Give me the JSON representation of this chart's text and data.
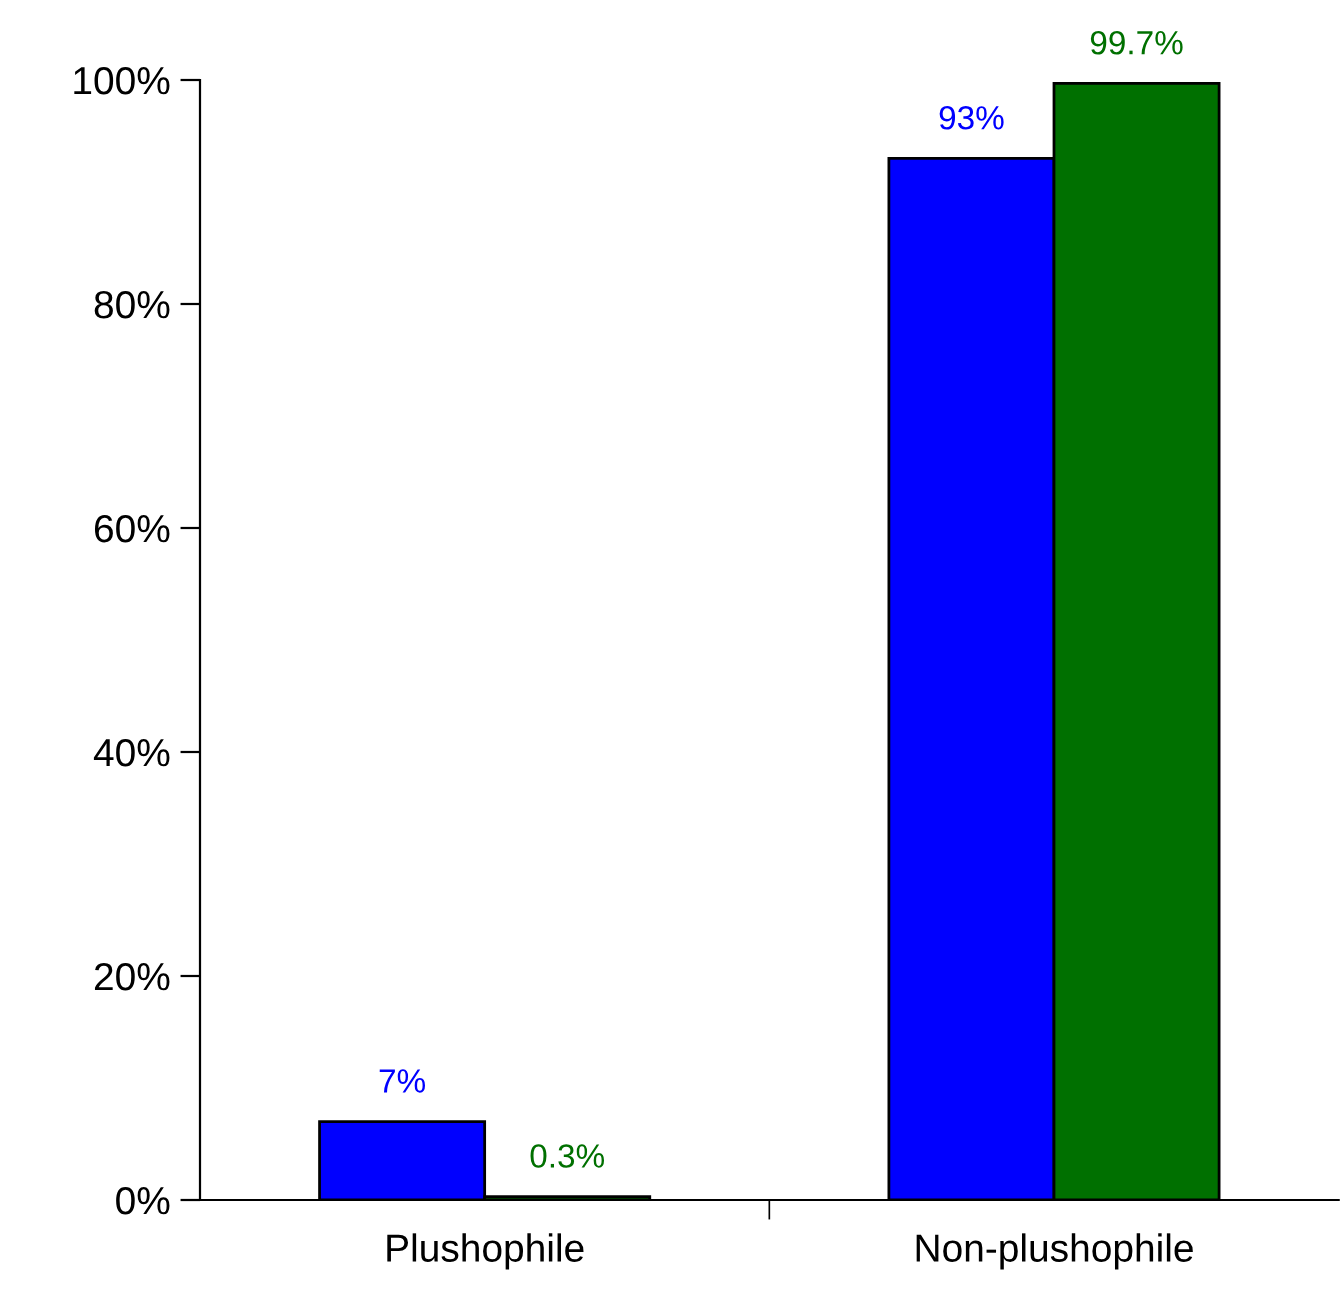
{
  "chart_data": {
    "type": "bar",
    "categories": [
      "Plushophile",
      "Non-plushophile"
    ],
    "series": [
      {
        "color": "#0000ff",
        "values": [
          7,
          93
        ],
        "value_labels": [
          "7%",
          "93%"
        ]
      },
      {
        "color": "#007000",
        "values": [
          0.3,
          99.7
        ],
        "value_labels": [
          "0.3%",
          "99.7%"
        ]
      }
    ],
    "ylim": [
      0,
      100
    ],
    "yticks": [
      {
        "value": 0,
        "label": "0%"
      },
      {
        "value": 20,
        "label": "20%"
      },
      {
        "value": 40,
        "label": "40%"
      },
      {
        "value": 60,
        "label": "60%"
      },
      {
        "value": 80,
        "label": "80%"
      },
      {
        "value": 100,
        "label": "100%"
      }
    ],
    "grid": false,
    "legend": false
  }
}
